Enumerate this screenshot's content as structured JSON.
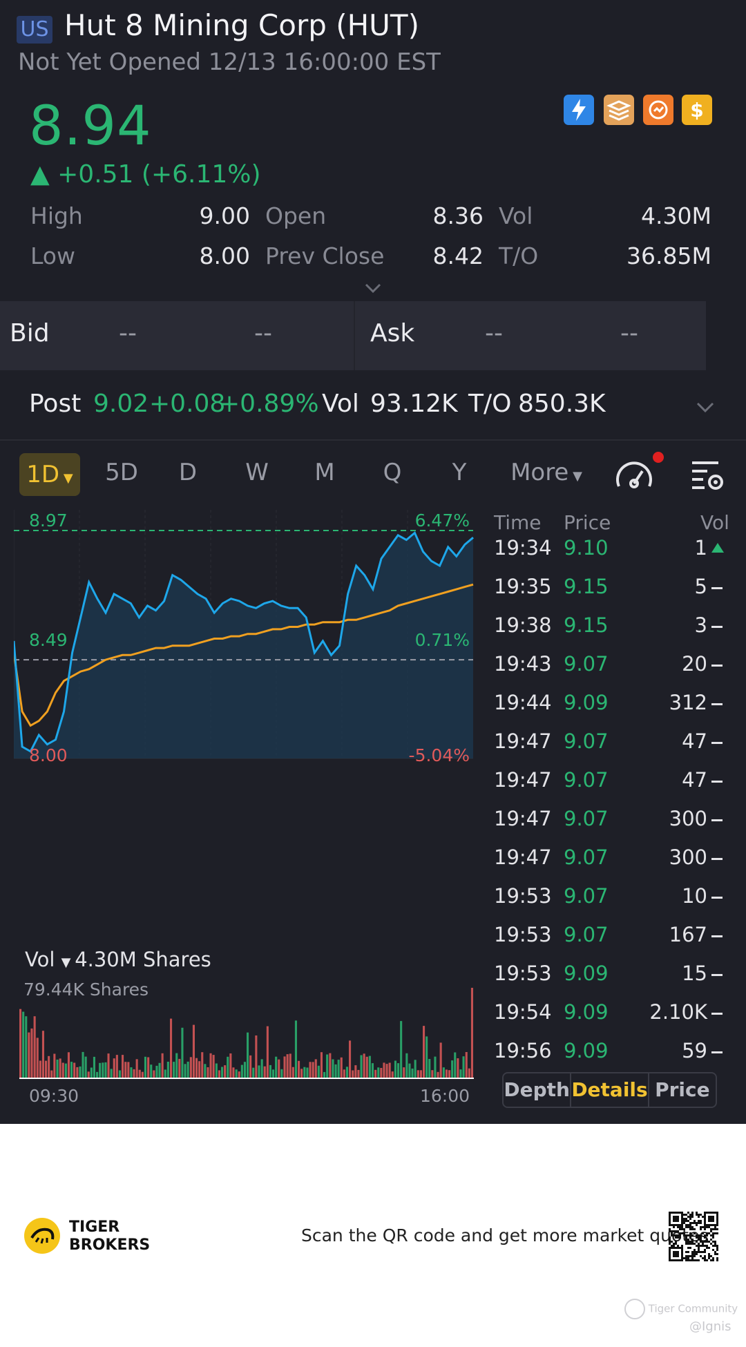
{
  "header": {
    "market": "US",
    "title": "Hut 8 Mining Corp (HUT)",
    "status": "Not Yet Opened 12/13 16:00:00 EST",
    "price": "8.94",
    "change_arrow": "▲",
    "change": "+0.51 (+6.11%)",
    "badges": [
      "lightning-icon",
      "layers-a-icon",
      "options-icon",
      "dollar-icon"
    ]
  },
  "stats": {
    "high_label": "High",
    "high": "9.00",
    "open_label": "Open",
    "open": "8.36",
    "vol_label": "Vol",
    "vol": "4.30M",
    "low_label": "Low",
    "low": "8.00",
    "prev_label": "Prev Close",
    "prev": "8.42",
    "to_label": "T/O",
    "to": "36.85M"
  },
  "quote": {
    "bid_label": "Bid",
    "bid_price": "--",
    "bid_size": "--",
    "ask_label": "Ask",
    "ask_price": "--",
    "ask_size": "--"
  },
  "post": {
    "label": "Post",
    "price": "9.02",
    "change": "+0.08",
    "pct": "+0.89%",
    "vol_label": "Vol",
    "vol": "93.12K",
    "to_label": "T/O",
    "to": "850.3K"
  },
  "tabs": [
    {
      "label": "1D",
      "active": true
    },
    {
      "label": "5D"
    },
    {
      "label": "D"
    },
    {
      "label": "W"
    },
    {
      "label": "M"
    },
    {
      "label": "Q"
    },
    {
      "label": "Y"
    },
    {
      "label": "More"
    }
  ],
  "chart_data": {
    "type": "line",
    "y_top_label": "8.97",
    "y_top_pct": "6.47%",
    "y_mid_label": "8.49",
    "y_mid_pct": "0.71%",
    "y_bot_label": "8.00",
    "y_bot_pct": "-5.04%",
    "ylim": [
      8.0,
      8.97
    ],
    "prev_close": 8.42,
    "x_start": "09:30",
    "x_end": "16:00",
    "series": [
      {
        "values": [
          8.5,
          8.05,
          8.03,
          8.1,
          8.06,
          8.08,
          8.2,
          8.45,
          8.6,
          8.75,
          8.68,
          8.62,
          8.7,
          8.68,
          8.66,
          8.6,
          8.65,
          8.63,
          8.67,
          8.78,
          8.76,
          8.73,
          8.7,
          8.68,
          8.62,
          8.66,
          8.68,
          8.67,
          8.65,
          8.64,
          8.66,
          8.67,
          8.65,
          8.64,
          8.64,
          8.6,
          8.45,
          8.5,
          8.44,
          8.48,
          8.7,
          8.82,
          8.78,
          8.72,
          8.85,
          8.9,
          8.95,
          8.93,
          8.96,
          8.88,
          8.84,
          8.82,
          8.9,
          8.86,
          8.91,
          8.94
        ]
      },
      {
        "values": [
          8.45,
          8.2,
          8.14,
          8.16,
          8.2,
          8.28,
          8.33,
          8.35,
          8.37,
          8.38,
          8.4,
          8.42,
          8.43,
          8.44,
          8.44,
          8.45,
          8.46,
          8.47,
          8.47,
          8.48,
          8.48,
          8.48,
          8.49,
          8.5,
          8.51,
          8.51,
          8.52,
          8.52,
          8.53,
          8.53,
          8.54,
          8.55,
          8.55,
          8.56,
          8.56,
          8.57,
          8.57,
          8.58,
          8.58,
          8.58,
          8.59,
          8.59,
          8.6,
          8.61,
          8.62,
          8.63,
          8.65,
          8.66,
          8.67,
          8.68,
          8.69,
          8.7,
          8.71,
          8.72,
          8.73,
          8.74
        ]
      }
    ],
    "volume_label": "Vol",
    "volume_total": "4.30M Shares",
    "volume_max_label": "79.44K Shares"
  },
  "colors": {
    "up": "#2bb673",
    "down": "#e05a5a",
    "price_line": "#1ea7ea",
    "avg_line": "#f0a020",
    "accent": "#f1c232"
  },
  "trades": {
    "headers": [
      "Time",
      "Price",
      "Vol"
    ],
    "rows": [
      {
        "time": "19:34",
        "price": "9.10",
        "vol": "1",
        "mark": "up"
      },
      {
        "time": "19:35",
        "price": "9.15",
        "vol": "5",
        "mark": "flat"
      },
      {
        "time": "19:38",
        "price": "9.15",
        "vol": "3",
        "mark": "flat"
      },
      {
        "time": "19:43",
        "price": "9.07",
        "vol": "20",
        "mark": "flat"
      },
      {
        "time": "19:44",
        "price": "9.09",
        "vol": "312",
        "mark": "flat"
      },
      {
        "time": "19:47",
        "price": "9.07",
        "vol": "47",
        "mark": "flat"
      },
      {
        "time": "19:47",
        "price": "9.07",
        "vol": "47",
        "mark": "flat"
      },
      {
        "time": "19:47",
        "price": "9.07",
        "vol": "300",
        "mark": "flat"
      },
      {
        "time": "19:47",
        "price": "9.07",
        "vol": "300",
        "mark": "flat"
      },
      {
        "time": "19:53",
        "price": "9.07",
        "vol": "10",
        "mark": "flat"
      },
      {
        "time": "19:53",
        "price": "9.07",
        "vol": "167",
        "mark": "flat"
      },
      {
        "time": "19:53",
        "price": "9.09",
        "vol": "15",
        "mark": "flat"
      },
      {
        "time": "19:54",
        "price": "9.09",
        "vol": "2.10K",
        "mark": "flat"
      },
      {
        "time": "19:56",
        "price": "9.09",
        "vol": "59",
        "mark": "flat"
      }
    ],
    "seg": [
      "Depth",
      "Details",
      "Price"
    ]
  },
  "footer": {
    "brand_line1": "TIGER",
    "brand_line2": "BROKERS",
    "qr_text": "Scan the QR code and get more market quotes",
    "watermark1": "Tiger Community",
    "watermark2": "@Ignis"
  }
}
